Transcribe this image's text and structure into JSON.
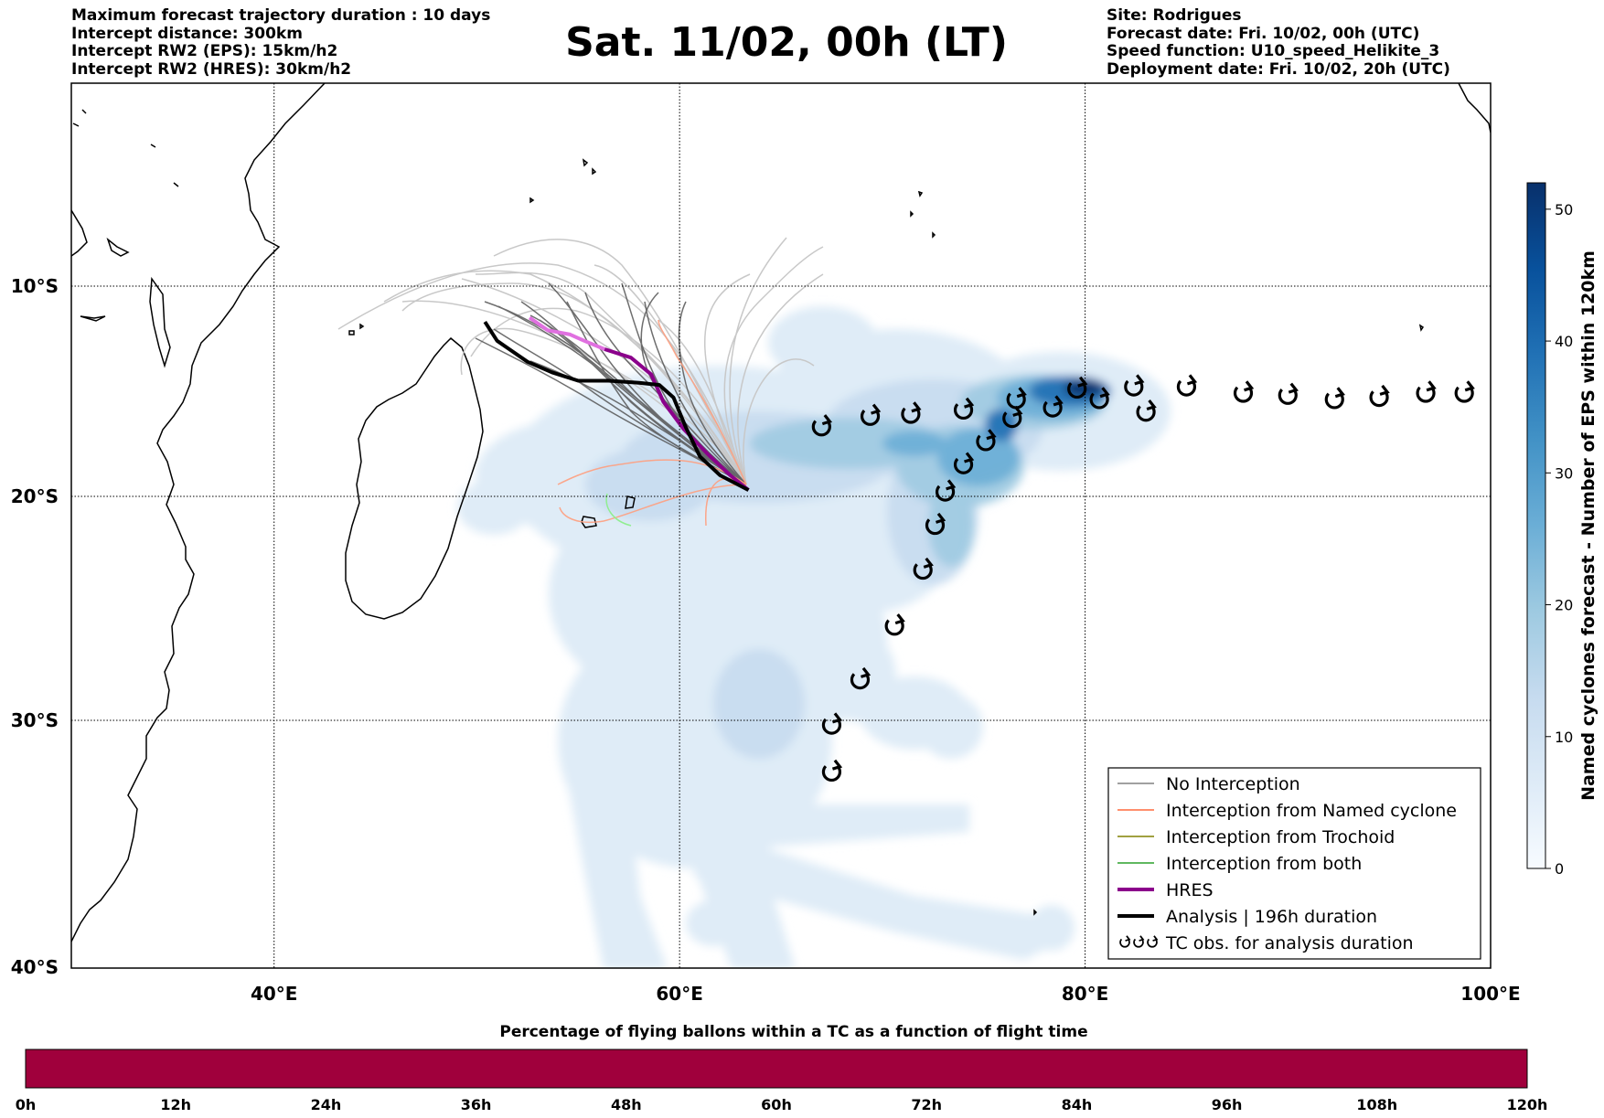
{
  "header": {
    "left_lines": [
      "Maximum forecast trajectory duration : 10 days",
      "Intercept distance: 300km",
      "Intercept RW2 (EPS):  15km/h2",
      "Intercept RW2 (HRES): 30km/h2"
    ],
    "title": "Sat. 11/02, 00h (LT)",
    "right_lines": [
      "Site: Rodrigues",
      "Forecast date: Fri. 10/02, 00h (UTC)",
      "Speed function: U10_speed_Helikite_3",
      "Deployment date: Fri. 10/02, 20h (UTC)"
    ]
  },
  "map": {
    "lon_labels": [
      "40°E",
      "60°E",
      "80°E",
      "100°E"
    ],
    "lat_labels": [
      "10°S",
      "20°S",
      "30°S",
      "40°S"
    ],
    "lon_range": [
      30,
      100
    ],
    "lat_range": [
      -1,
      -40
    ],
    "grid": true,
    "tc_symbol": "tropical-cyclone-icon",
    "tc_obs": [
      [
        67.0,
        -16.7
      ],
      [
        69.4,
        -16.2
      ],
      [
        71.4,
        -16.1
      ],
      [
        74.0,
        -15.9
      ],
      [
        75.1,
        -17.4
      ],
      [
        74.0,
        -18.5
      ],
      [
        73.1,
        -19.8
      ],
      [
        72.6,
        -21.3
      ],
      [
        72.0,
        -23.3
      ],
      [
        70.6,
        -25.8
      ],
      [
        68.9,
        -28.2
      ],
      [
        67.5,
        -30.2
      ],
      [
        67.5,
        -32.1
      ],
      [
        76.4,
        -16.3
      ],
      [
        76.6,
        -15.4
      ],
      [
        78.4,
        -15.8
      ],
      [
        79.6,
        -14.9
      ],
      [
        80.7,
        -15.4
      ],
      [
        82.4,
        -14.8
      ],
      [
        83.0,
        -16.0
      ],
      [
        85.0,
        -14.8
      ],
      [
        87.8,
        -15.1
      ],
      [
        90.0,
        -15.2
      ],
      [
        92.3,
        -15.4
      ],
      [
        94.5,
        -15.3
      ],
      [
        96.8,
        -15.1
      ],
      [
        98.7,
        -15.1
      ]
    ],
    "deployment_site": [
      63.4,
      -19.7
    ],
    "hres_track": [
      [
        52.6,
        -11.5
      ],
      [
        53.5,
        -12.1
      ],
      [
        54.6,
        -12.3
      ],
      [
        55.3,
        -12.6
      ],
      [
        56.3,
        -13.0
      ],
      [
        57.6,
        -13.4
      ],
      [
        58.6,
        -14.2
      ],
      [
        59.2,
        -15.5
      ],
      [
        60.2,
        -16.8
      ],
      [
        61.4,
        -18.0
      ],
      [
        62.5,
        -19.0
      ],
      [
        63.4,
        -19.7
      ]
    ],
    "analysis_track": [
      [
        50.4,
        -11.7
      ],
      [
        51.0,
        -12.6
      ],
      [
        51.6,
        -13.0
      ],
      [
        52.5,
        -13.6
      ],
      [
        53.7,
        -14.1
      ],
      [
        55.0,
        -14.5
      ],
      [
        56.5,
        -14.5
      ],
      [
        58.0,
        -14.6
      ],
      [
        59.0,
        -14.7
      ],
      [
        59.7,
        -15.3
      ],
      [
        60.3,
        -16.7
      ],
      [
        61.0,
        -18.1
      ],
      [
        62.0,
        -19.0
      ],
      [
        63.4,
        -19.7
      ]
    ],
    "density_colors": [
      "#deebf7",
      "#c6dbef",
      "#9ecae1",
      "#6baed6",
      "#4292c6",
      "#2171b5",
      "#08519c",
      "#08306b"
    ]
  },
  "legend": {
    "items": [
      {
        "label": "No Interception",
        "color": "#808080",
        "width": 1.5
      },
      {
        "label": "Interception from Named cyclone",
        "color": "#ff6a3d",
        "width": 1.5
      },
      {
        "label": "Interception from Trochoid",
        "color": "#808000",
        "width": 1.5
      },
      {
        "label": "Interception from both",
        "color": "#2ca02c",
        "width": 1.5
      },
      {
        "label": "HRES",
        "color": "#8b008b",
        "width": 4
      },
      {
        "label": "Analysis | 196h duration",
        "color": "#000000",
        "width": 4
      },
      {
        "label": "TC obs. for analysis duration",
        "color": "#000000",
        "symbol": "tc"
      }
    ]
  },
  "colorbar": {
    "title": "Named cyclones forecast - Number of EPS within 120km",
    "ticks": [
      "0",
      "10",
      "20",
      "30",
      "40",
      "50"
    ],
    "tick_values": [
      0,
      10,
      20,
      30,
      40,
      50
    ],
    "max": 52,
    "colors": [
      "#f7fbff",
      "#deebf7",
      "#c6dbef",
      "#9ecae1",
      "#6baed6",
      "#4292c6",
      "#2171b5",
      "#08519c",
      "#08306b"
    ]
  },
  "bottom_bar": {
    "title": "Percentage of flying ballons within a TC as a function of flight time",
    "ticks": [
      "0h",
      "12h",
      "24h",
      "36h",
      "48h",
      "60h",
      "72h",
      "84h",
      "96h",
      "108h",
      "120h"
    ],
    "color": "#a0003c"
  }
}
